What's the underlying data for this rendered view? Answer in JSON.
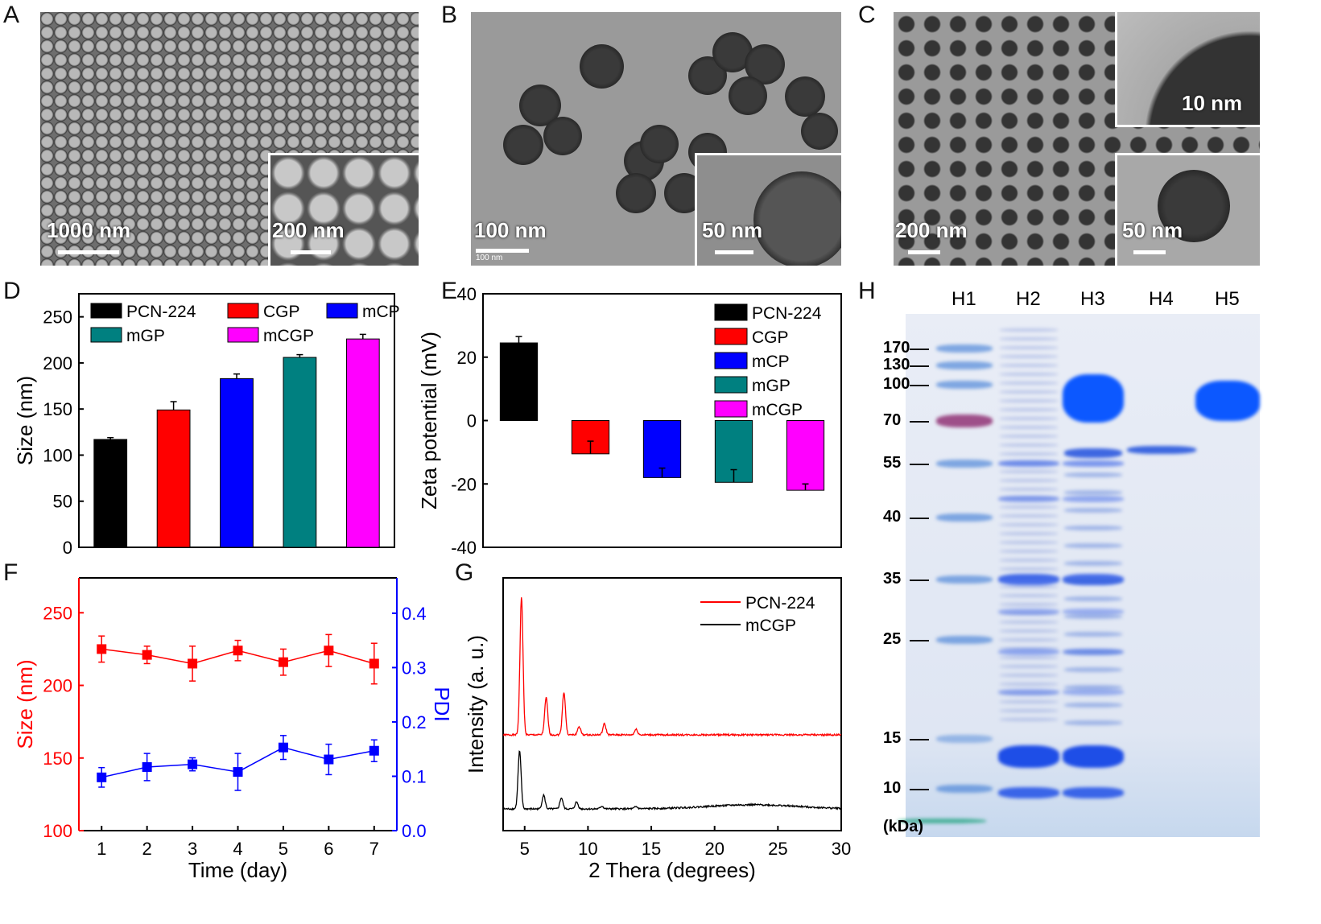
{
  "panels": {
    "A": "A",
    "B": "B",
    "C": "C",
    "D": "D",
    "E": "E",
    "F": "F",
    "G": "G",
    "H": "H"
  },
  "micrographs": {
    "A": {
      "main_scale": "1000 nm",
      "inset_scale": "200 nm"
    },
    "B": {
      "main_scale": "100 nm",
      "inset_scale": "50 nm",
      "embedded_scale": "100 nm"
    },
    "C": {
      "main_scale": "200 nm",
      "inset_top_scale": "10 nm",
      "inset_bottom_scale": "50 nm"
    }
  },
  "chart_data": [
    {
      "id": "D",
      "type": "bar",
      "categories": [
        "PCN-224",
        "CGP",
        "mCP",
        "mGP",
        "mCGP"
      ],
      "values": [
        117,
        149,
        183,
        206,
        226
      ],
      "errors": [
        2,
        9,
        5,
        3,
        5
      ],
      "colors": [
        "#000000",
        "#ff0000",
        "#0000ff",
        "#008080",
        "#ff00ff"
      ],
      "ylabel": "Size (nm)",
      "xlabel": "",
      "ylim": [
        0,
        275
      ],
      "yticks": [
        0,
        50,
        100,
        150,
        200,
        250
      ],
      "legend": "top",
      "legend_entries": [
        "PCN-224",
        "CGP",
        "mCP",
        "mGP",
        "mCGP"
      ]
    },
    {
      "id": "E",
      "type": "bar",
      "categories": [
        "PCN-224",
        "CGP",
        "mCP",
        "mGP",
        "mCGP"
      ],
      "values": [
        24.5,
        -10.5,
        -18,
        -19.5,
        -22
      ],
      "errors": [
        2,
        4,
        3,
        4,
        2
      ],
      "colors": [
        "#000000",
        "#ff0000",
        "#0000ff",
        "#008080",
        "#ff00ff"
      ],
      "ylabel": "Zeta potential (mV)",
      "xlabel": "",
      "ylim": [
        -40,
        40
      ],
      "yticks": [
        -40,
        -20,
        0,
        20,
        40
      ],
      "legend": "top-right",
      "legend_entries": [
        "PCN-224",
        "CGP",
        "mCP",
        "mGP",
        "mCGP"
      ]
    },
    {
      "id": "F",
      "type": "line",
      "x": [
        1,
        2,
        3,
        4,
        5,
        6,
        7
      ],
      "xlabel": "Time (day)",
      "xlim": [
        0.5,
        7.5
      ],
      "xticks": [
        1,
        2,
        3,
        4,
        5,
        6,
        7
      ],
      "series": [
        {
          "name": "Size",
          "axis": "left",
          "color": "#ff0000",
          "values": [
            225,
            221,
            215,
            224,
            216,
            224,
            215
          ],
          "errors": [
            9,
            6,
            12,
            7,
            9,
            11,
            14
          ]
        },
        {
          "name": "PDI",
          "axis": "right",
          "color": "#0000ff",
          "values": [
            0.098,
            0.117,
            0.122,
            0.108,
            0.153,
            0.131,
            0.147
          ],
          "errors": [
            0.018,
            0.025,
            0.012,
            0.034,
            0.022,
            0.028,
            0.02
          ]
        }
      ],
      "ylabel": "Size (nm)",
      "ylim": [
        100,
        274
      ],
      "yticks": [
        100,
        150,
        200,
        250
      ],
      "y2label": "PDI",
      "y2lim": [
        0,
        0.465
      ],
      "y2ticks": [
        0.0,
        0.1,
        0.2,
        0.3,
        0.4
      ]
    },
    {
      "id": "G",
      "type": "line",
      "xlabel": "2 Thera (degrees)",
      "ylabel": "Intensity (a. u.)",
      "xlim": [
        3.3,
        30
      ],
      "xticks": [
        5,
        10,
        15,
        20,
        25,
        30
      ],
      "legend": "top-right",
      "series": [
        {
          "name": "PCN-224",
          "color": "#ff0000",
          "offset": 1,
          "peaks": [
            [
              4.75,
              1.0
            ],
            [
              6.7,
              0.27
            ],
            [
              8.1,
              0.31
            ],
            [
              9.3,
              0.06
            ],
            [
              11.3,
              0.08
            ],
            [
              13.8,
              0.04
            ]
          ],
          "hump": [
            23,
            0.0
          ]
        },
        {
          "name": "mCGP",
          "color": "#000000",
          "offset": 0,
          "peaks": [
            [
              4.6,
              0.42
            ],
            [
              6.5,
              0.1
            ],
            [
              7.9,
              0.08
            ],
            [
              9.1,
              0.05
            ],
            [
              11.1,
              0.02
            ],
            [
              13.8,
              0.015
            ]
          ],
          "hump": [
            23,
            0.03
          ]
        }
      ]
    }
  ],
  "gel": {
    "lanes": [
      "H1",
      "H2",
      "H3",
      "H4",
      "H5"
    ],
    "markers": [
      "170",
      "130",
      "100",
      "70",
      "55",
      "40",
      "35",
      "25",
      "15",
      "10"
    ],
    "unit": "(kDa)"
  }
}
